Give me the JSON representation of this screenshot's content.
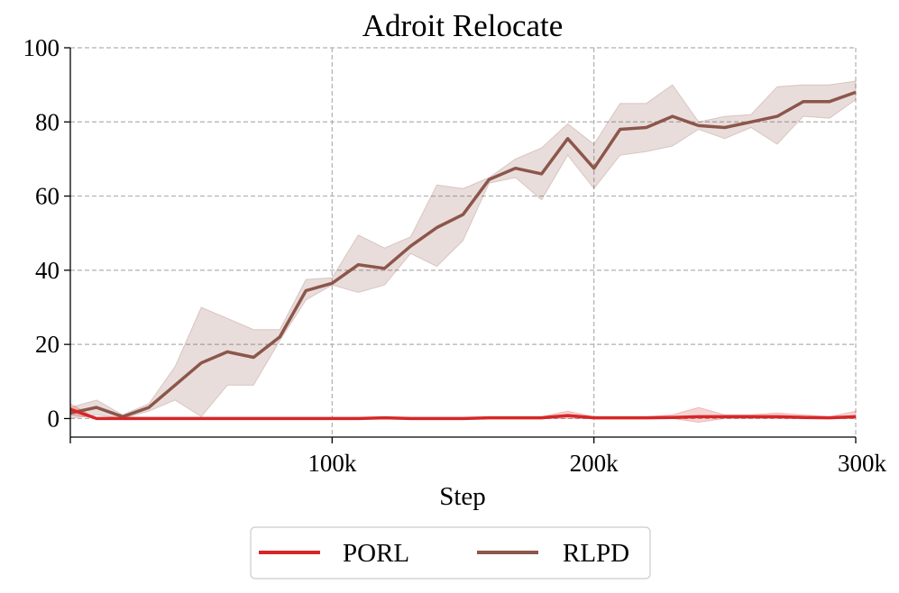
{
  "chart_data": {
    "type": "line",
    "title": "Adroit Relocate",
    "xlabel": "Step",
    "ylabel": "",
    "xlim": [
      0,
      300000
    ],
    "ylim": [
      -5,
      100
    ],
    "x_ticks": [
      100000,
      200000,
      300000
    ],
    "x_tick_labels": [
      "100k",
      "200k",
      "300k"
    ],
    "y_ticks": [
      0,
      20,
      40,
      60,
      80,
      100
    ],
    "y_tick_labels": [
      "0",
      "20",
      "40",
      "60",
      "80",
      "100"
    ],
    "grid": true,
    "legend_position": "bottom-center",
    "x": [
      0,
      10000,
      20000,
      30000,
      40000,
      50000,
      60000,
      70000,
      80000,
      90000,
      100000,
      110000,
      120000,
      130000,
      140000,
      150000,
      160000,
      170000,
      180000,
      190000,
      200000,
      210000,
      220000,
      230000,
      240000,
      250000,
      260000,
      270000,
      280000,
      290000,
      300000
    ],
    "series": [
      {
        "name": "RLPD",
        "color": "#8c564b",
        "values": [
          1.5,
          3,
          0.5,
          3,
          9,
          15,
          18,
          16.5,
          22,
          34.5,
          36.5,
          41.5,
          40.5,
          46.5,
          51.5,
          55,
          64.5,
          67.5,
          66,
          75.5,
          67.5,
          78,
          78.5,
          81.5,
          79,
          78.5,
          80,
          81.5,
          85.5,
          85.5,
          88
        ],
        "lower": [
          0,
          1,
          0,
          2,
          5,
          0.5,
          9,
          9,
          21,
          32,
          36,
          34,
          36,
          44.5,
          41,
          48,
          63.5,
          65,
          59,
          71,
          62,
          71,
          72,
          73.5,
          78,
          75.5,
          78.5,
          74,
          81.5,
          81,
          86
        ],
        "upper": [
          3,
          5,
          1,
          4,
          14,
          30,
          27,
          24,
          24,
          37.5,
          38,
          49.5,
          46,
          49,
          63,
          62,
          65,
          70,
          73,
          79.5,
          74,
          85,
          85,
          90,
          80,
          81.5,
          82,
          89.5,
          90,
          90,
          91
        ]
      },
      {
        "name": "PORL",
        "color": "#d62728",
        "values": [
          2.5,
          0,
          0,
          0,
          0,
          0,
          0,
          0,
          0,
          0,
          0,
          0,
          0.2,
          0,
          0,
          0,
          0.2,
          0.2,
          0.2,
          0.8,
          0.2,
          0.2,
          0.2,
          0.3,
          0.5,
          0.5,
          0.5,
          0.5,
          0.3,
          0.2,
          0.5
        ],
        "lower": [
          1,
          0,
          0,
          0,
          0,
          0,
          0,
          0,
          0,
          0,
          0,
          0,
          0,
          0,
          0,
          0,
          0,
          0,
          0,
          0,
          0,
          0,
          0,
          0,
          -1,
          0,
          0,
          0,
          0,
          0,
          0
        ],
        "upper": [
          4,
          0,
          0,
          0,
          0,
          0,
          0,
          0,
          0,
          0,
          0,
          0,
          0.5,
          0,
          0,
          0,
          0.5,
          0.5,
          0.5,
          2,
          0.5,
          0.5,
          0.5,
          1,
          3,
          1,
          1,
          1.5,
          1,
          0.5,
          2
        ]
      }
    ]
  }
}
